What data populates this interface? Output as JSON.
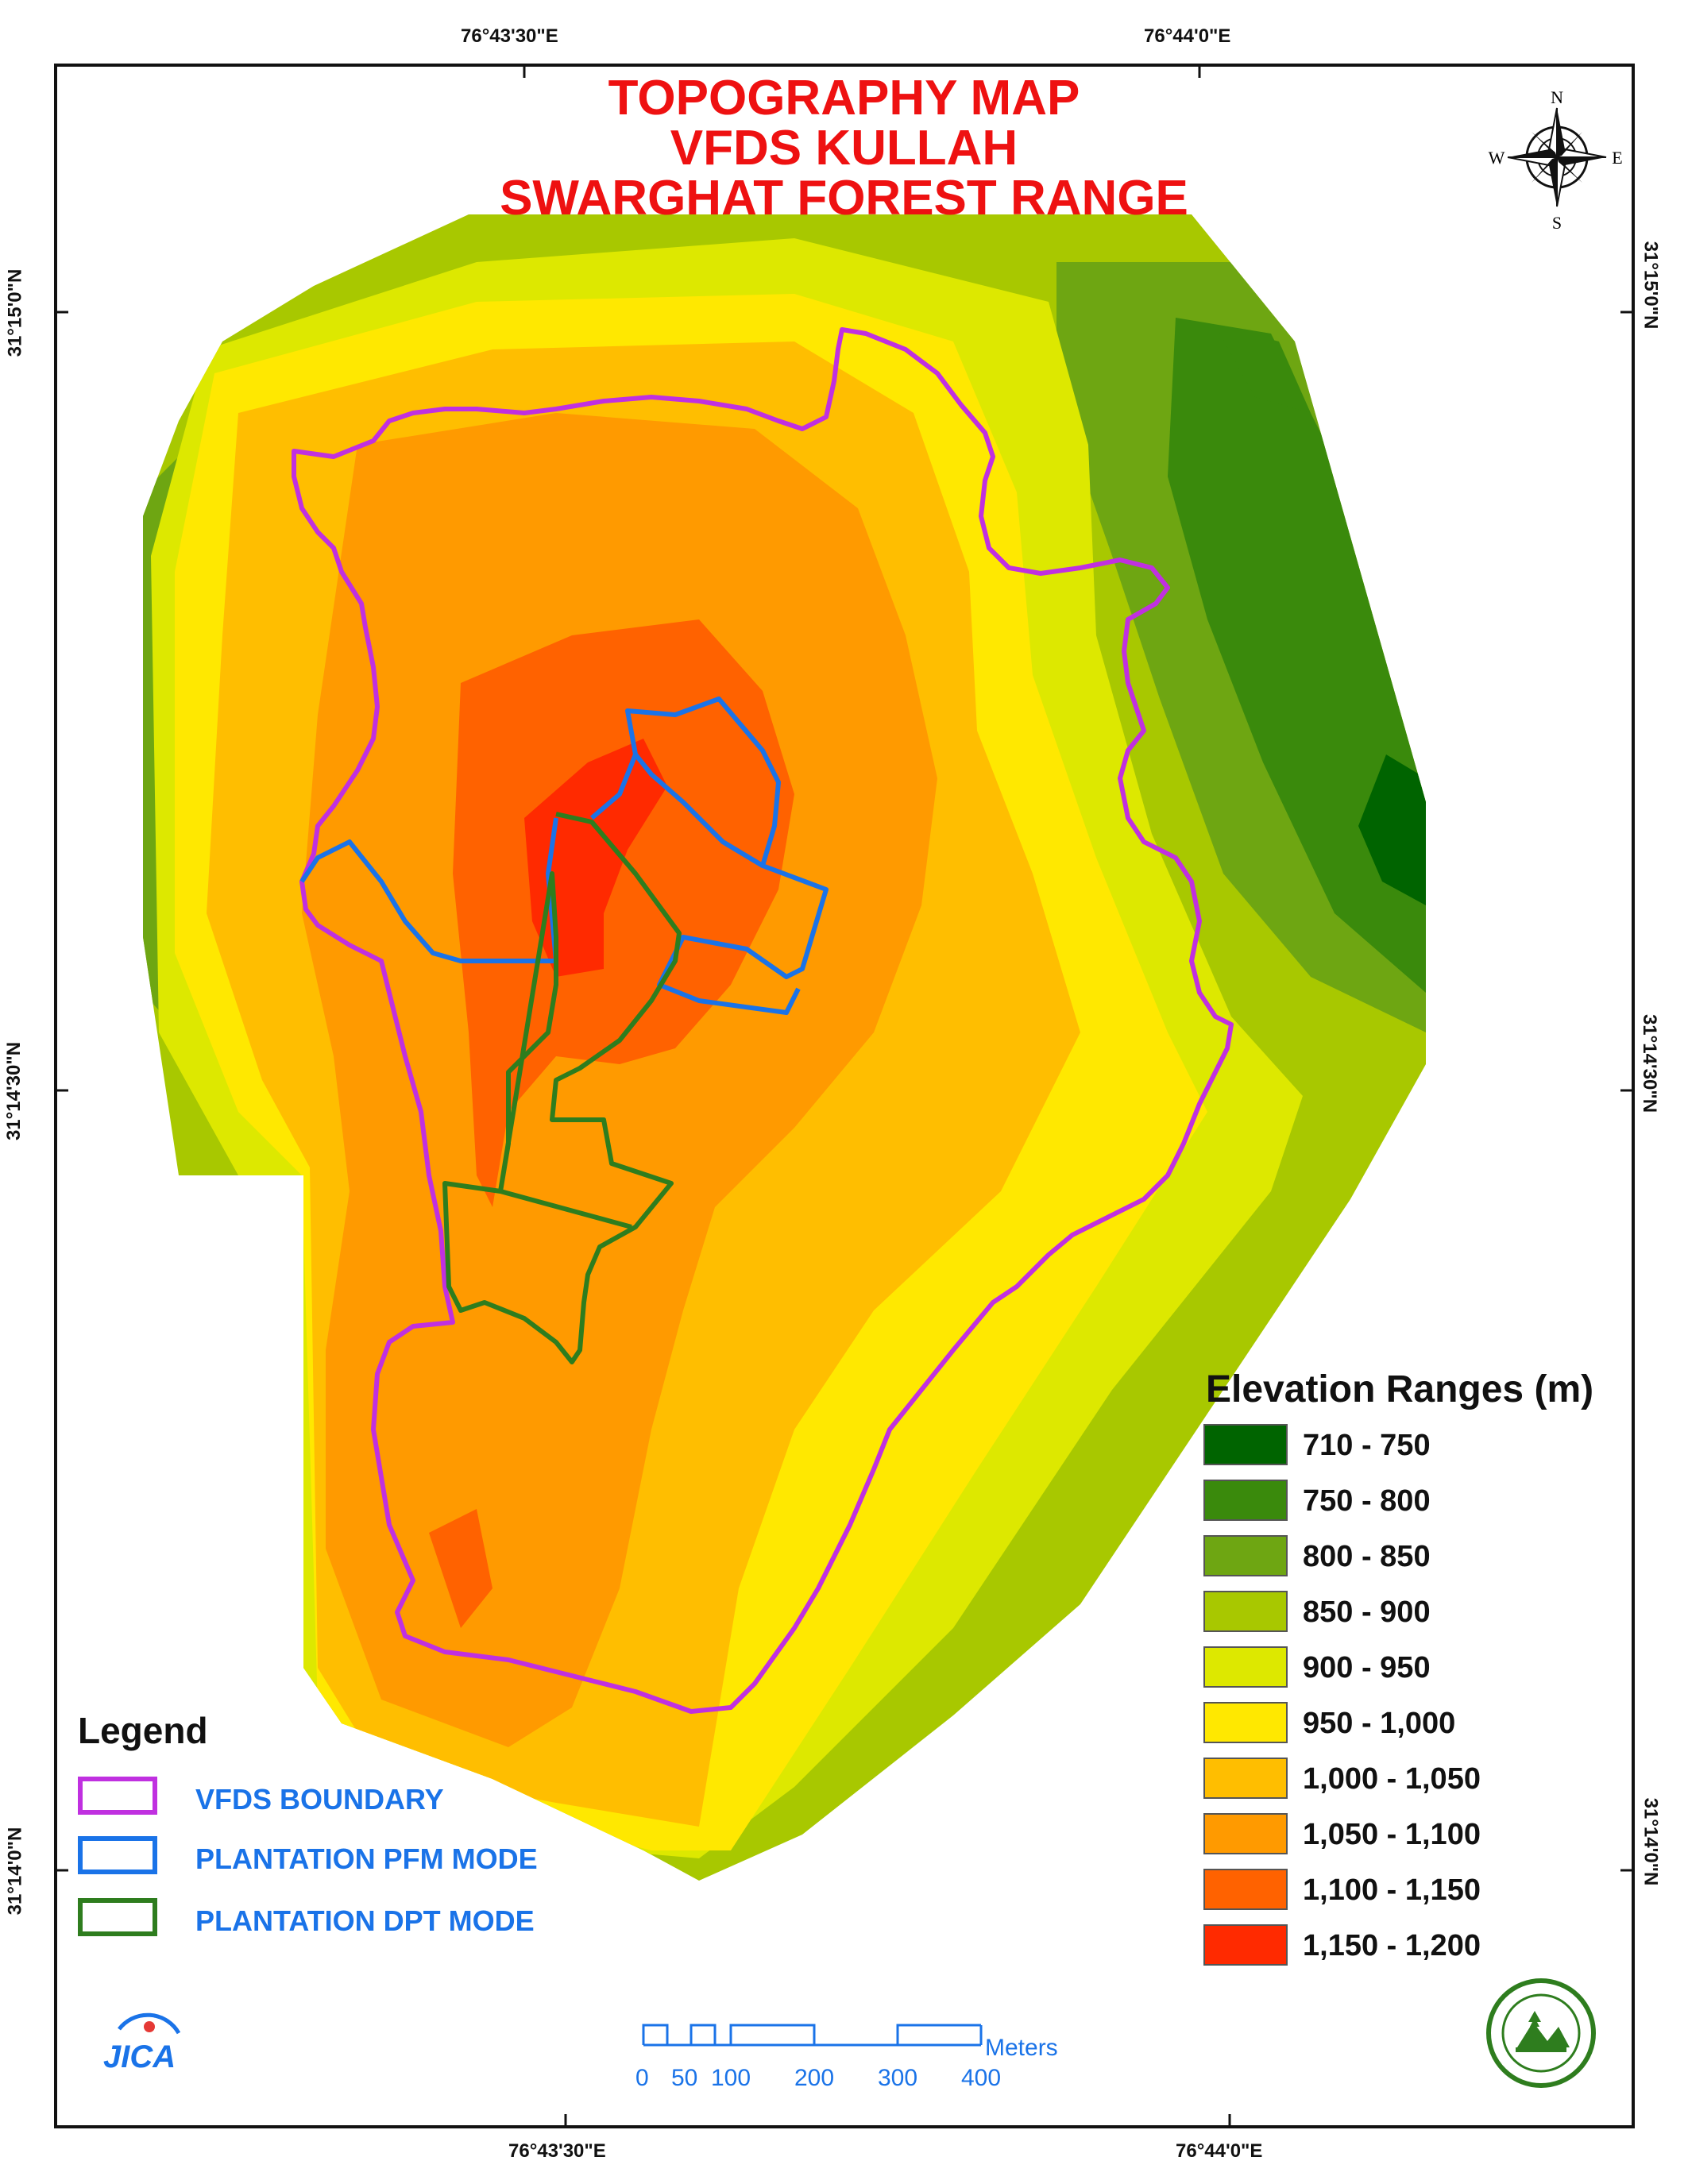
{
  "title": [
    "TOPOGRAPHY MAP",
    "VFDS KULLAH",
    "SWARGHAT FOREST RANGE"
  ],
  "coordinates": {
    "top": [
      "76°43'30\"E",
      "76°44'0\"E"
    ],
    "bottom": [
      "76°43'30\"E",
      "76°44'0\"E"
    ],
    "left": [
      "31°15'0\"N",
      "31°14'30\"N",
      "31°14'0\"N"
    ],
    "right": [
      "31°15'0\"N",
      "31°14'30\"N",
      "31°14'0\"N"
    ]
  },
  "north_arrow": {
    "n": "N",
    "s": "S",
    "e": "E",
    "w": "W"
  },
  "legend": {
    "title": "Legend",
    "items": [
      {
        "label": "VFDS BOUNDARY",
        "color": "#c030e0"
      },
      {
        "label": "PLANTATION PFM MODE",
        "color": "#1a73e8"
      },
      {
        "label": "PLANTATION DPT MODE",
        "color": "#2e7d1e"
      }
    ]
  },
  "elevation": {
    "title": "Elevation Ranges (m)",
    "ranges": [
      {
        "label": "710 - 750",
        "color": "#006400"
      },
      {
        "label": "750 - 800",
        "color": "#3a8a0c"
      },
      {
        "label": "800 - 850",
        "color": "#6ea612"
      },
      {
        "label": "850 - 900",
        "color": "#a8c800"
      },
      {
        "label": "900 - 950",
        "color": "#dde800"
      },
      {
        "label": "950 - 1,000",
        "color": "#ffe800"
      },
      {
        "label": "1,000 - 1,050",
        "color": "#ffbe00"
      },
      {
        "label": "1,050 - 1,100",
        "color": "#ff9a00"
      },
      {
        "label": "1,100 - 1,150",
        "color": "#ff6200"
      },
      {
        "label": "1,150 - 1,200",
        "color": "#ff2a00"
      }
    ]
  },
  "scale": {
    "unit": "Meters",
    "ticks": [
      "0",
      "50",
      "100",
      "200",
      "300",
      "400"
    ]
  },
  "logos": {
    "jica": "JICA"
  }
}
